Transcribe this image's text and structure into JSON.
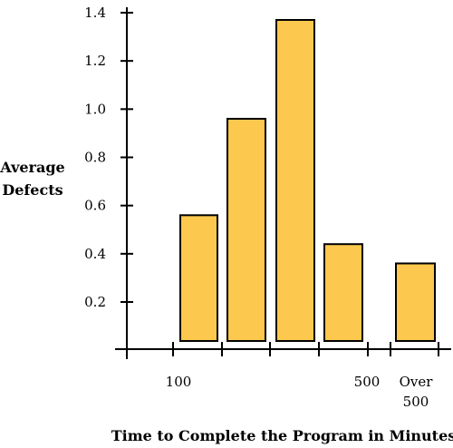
{
  "chart_data": {
    "type": "bar",
    "title": "",
    "ylabel_lines": [
      "Average",
      "Defects"
    ],
    "xlabel": "Time to Complete the Program in Minutes",
    "ylim": [
      0,
      1.4
    ],
    "y_ticks": [
      0.2,
      0.4,
      0.6,
      0.8,
      1.0,
      1.2,
      1.4
    ],
    "y_tick_labels": [
      "0.2",
      "0.4",
      "0.6",
      "0.8",
      "1.0",
      "1.2",
      "1.4"
    ],
    "x_tick_labels": [
      {
        "text": "100"
      },
      {
        "text": "500"
      },
      {
        "text_lines": [
          "Over",
          "500"
        ]
      }
    ],
    "bars": [
      {
        "range": "100–200",
        "value": 0.56
      },
      {
        "range": "200–300",
        "value": 0.96
      },
      {
        "range": "300–400",
        "value": 1.37
      },
      {
        "range": "400–500",
        "value": 0.44
      },
      {
        "range": "Over 500",
        "value": 0.36
      }
    ],
    "grid": false,
    "colors": {
      "bar_fill": "#FCC84E",
      "bar_stroke": "#000000",
      "axis": "#000000"
    }
  }
}
